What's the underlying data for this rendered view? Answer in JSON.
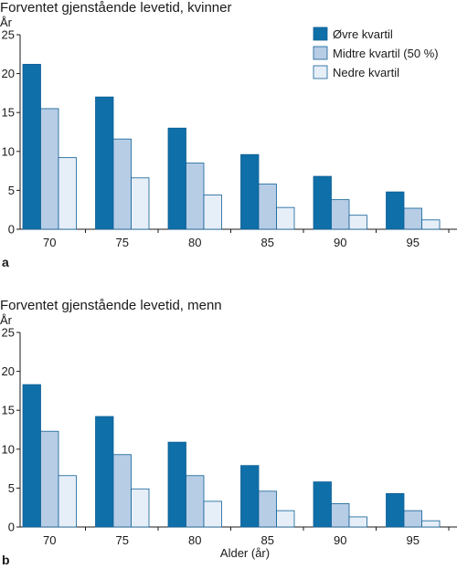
{
  "chart_data": [
    {
      "type": "bar",
      "panel_label": "a",
      "title": "Forventet gjenstående levetid, kvinner",
      "ylabel": "År",
      "xlabel": "",
      "ylim": [
        0,
        25
      ],
      "yticks": [
        0,
        5,
        10,
        15,
        20,
        25
      ],
      "categories": [
        "70",
        "75",
        "80",
        "85",
        "90",
        "95"
      ],
      "legend_position": "top-right",
      "series": [
        {
          "name": "Øvre kvartil",
          "color": "#0f6fa8",
          "values": [
            21.2,
            17.0,
            13.0,
            9.6,
            6.8,
            4.8
          ]
        },
        {
          "name": "Midtre kvartil (50 %)",
          "color": "#b7cde6",
          "values": [
            15.5,
            11.6,
            8.5,
            5.8,
            3.8,
            2.7
          ]
        },
        {
          "name": "Nedre kvartil",
          "color": "#e6eef8",
          "values": [
            9.2,
            6.6,
            4.4,
            2.8,
            1.8,
            1.2
          ]
        }
      ]
    },
    {
      "type": "bar",
      "panel_label": "b",
      "title": "Forventet gjenstående levetid, menn",
      "ylabel": "År",
      "xlabel": "Alder (år)",
      "ylim": [
        0,
        25
      ],
      "yticks": [
        0,
        5,
        10,
        15,
        20,
        25
      ],
      "categories": [
        "70",
        "75",
        "80",
        "85",
        "90",
        "95"
      ],
      "series": [
        {
          "name": "Øvre kvartil",
          "color": "#0f6fa8",
          "values": [
            18.3,
            14.2,
            10.9,
            7.9,
            5.8,
            4.3
          ]
        },
        {
          "name": "Midtre kvartil (50 %)",
          "color": "#b7cde6",
          "values": [
            12.3,
            9.3,
            6.6,
            4.6,
            3.0,
            2.1
          ]
        },
        {
          "name": "Nedre kvartil",
          "color": "#e6eef8",
          "values": [
            6.6,
            4.9,
            3.3,
            2.1,
            1.3,
            0.8
          ]
        }
      ]
    }
  ]
}
